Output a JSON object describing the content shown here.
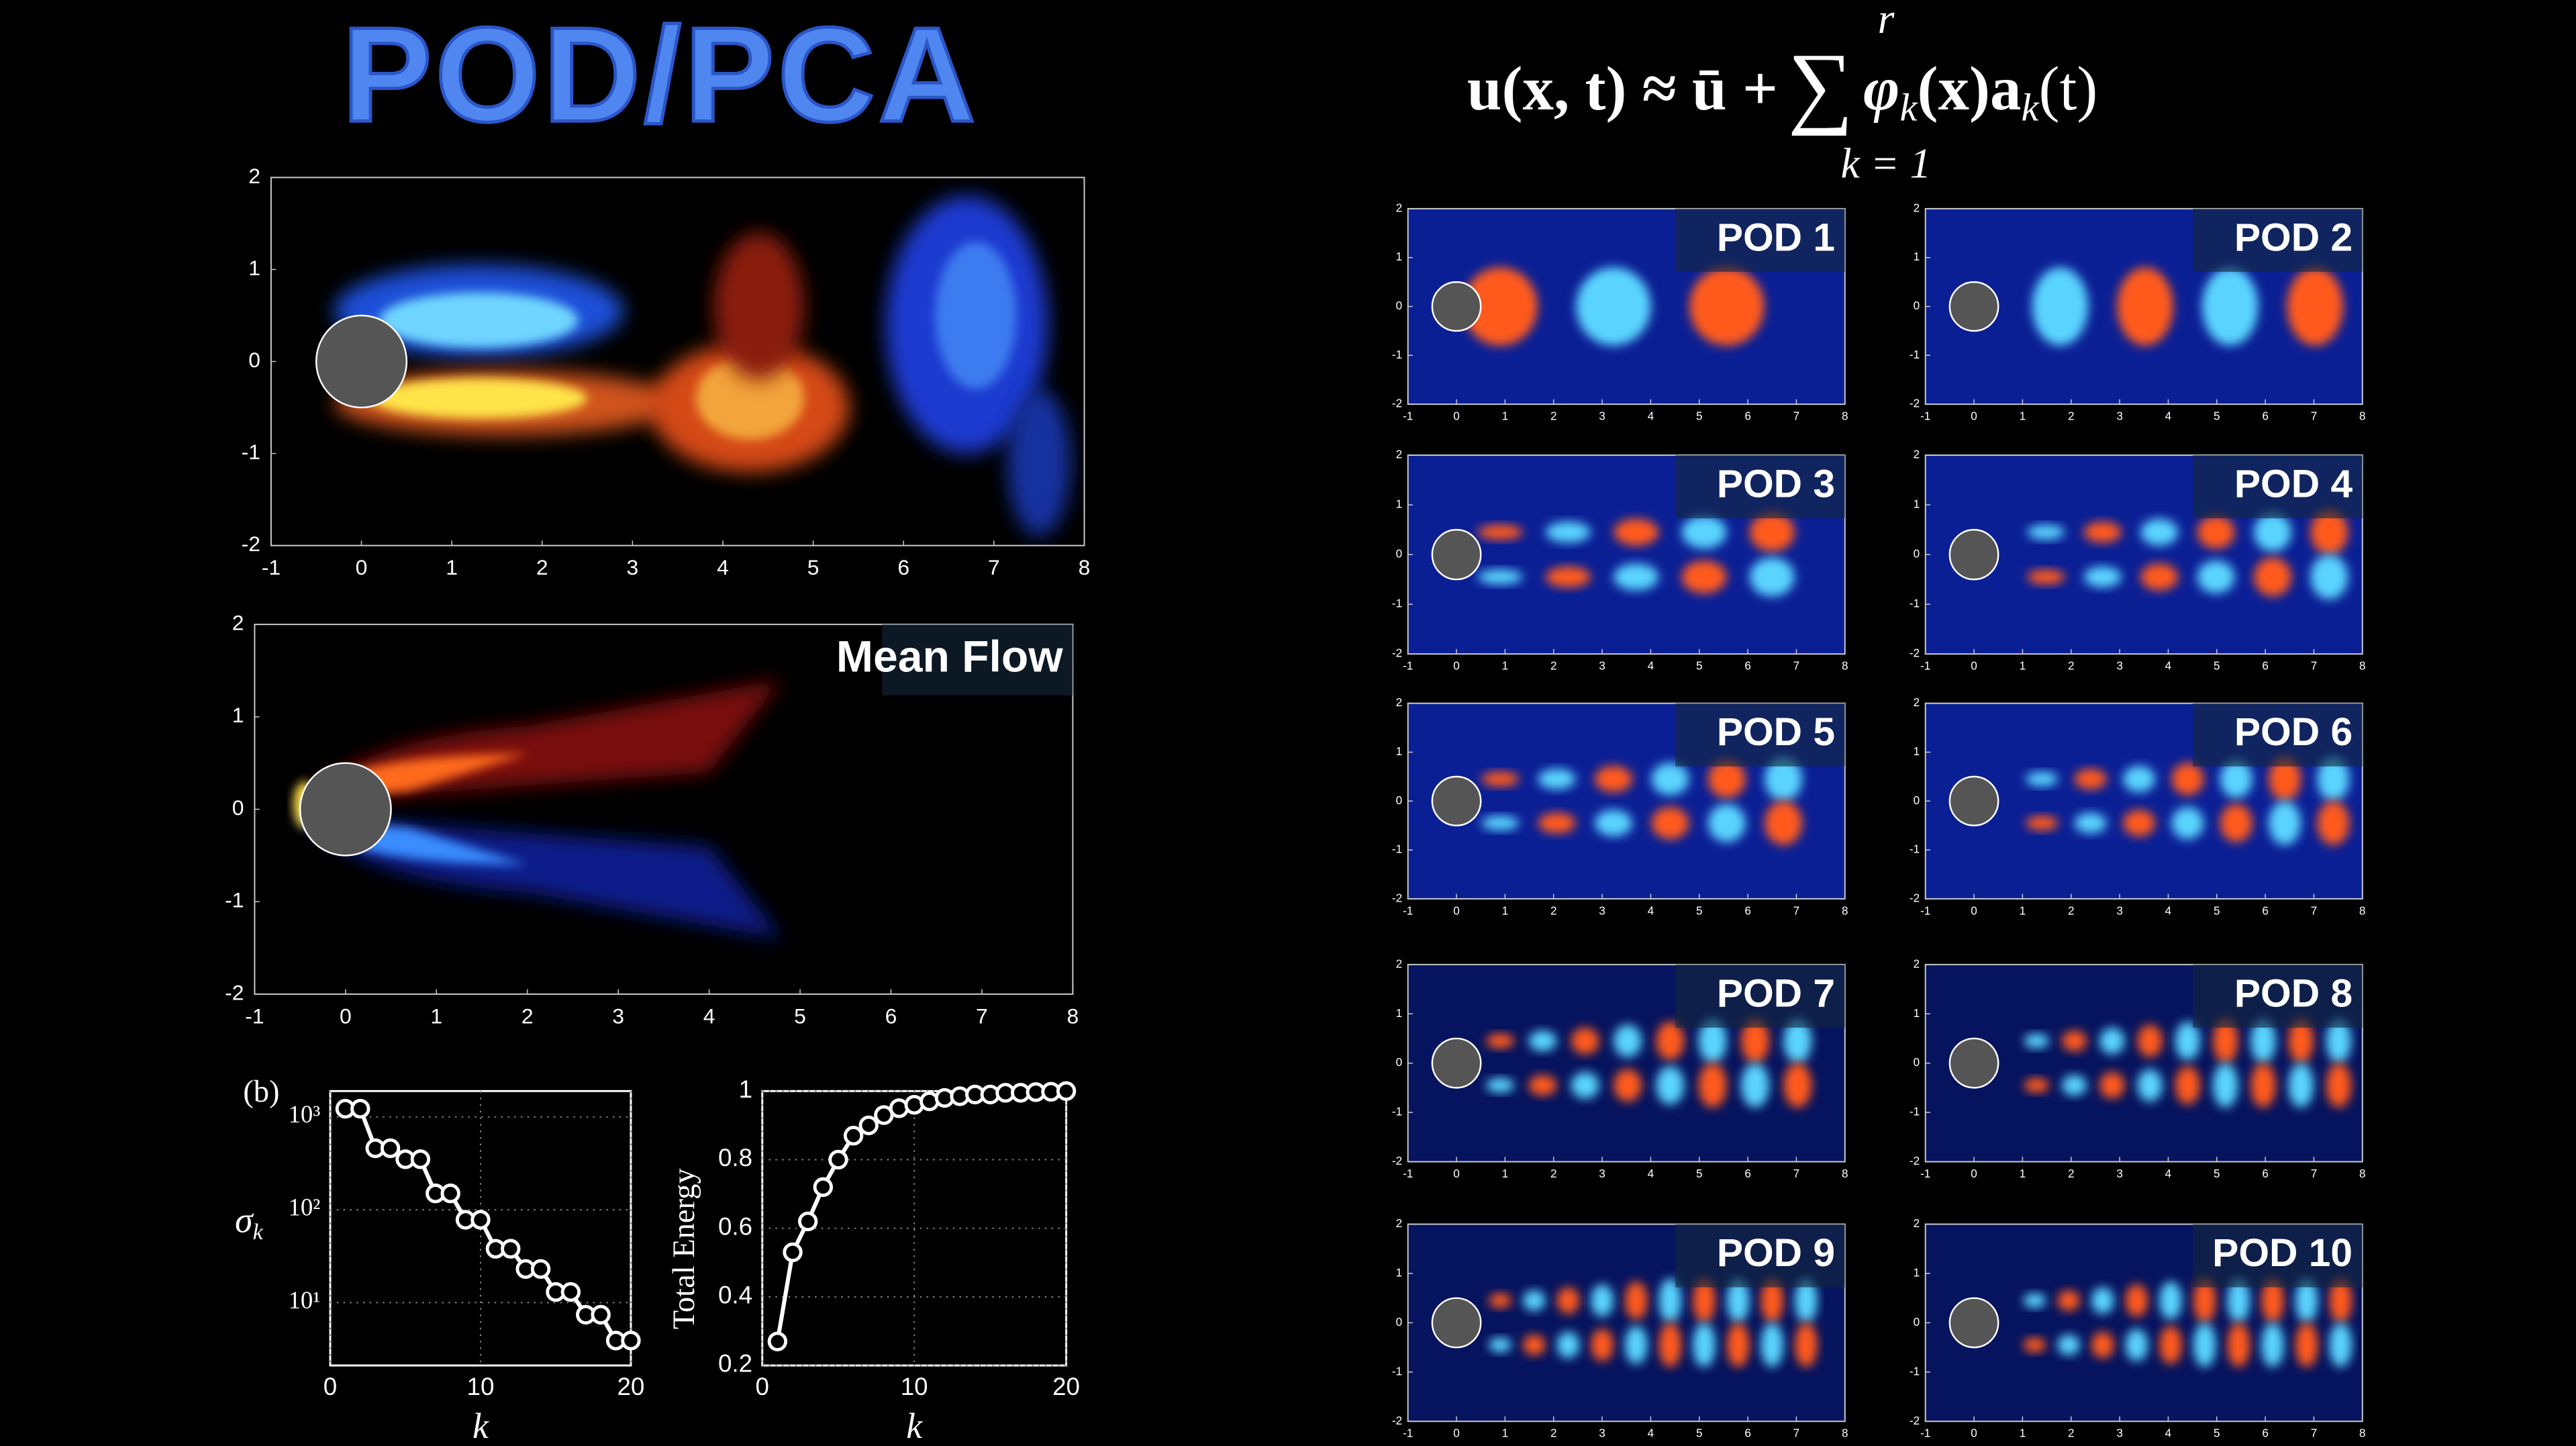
{
  "title": "POD/PCA",
  "equation": {
    "lhs": "u(x, t) ≈ ū +",
    "sum": "∑",
    "upper": "r",
    "lower": "k = 1",
    "phi": "φ",
    "sub1": "k",
    "mid": "(x)a",
    "sub2": "k",
    "end": "(t)"
  },
  "field_axes": {
    "xlim": [
      -1,
      8
    ],
    "ylim": [
      -2,
      2
    ],
    "xticks": [
      -1,
      0,
      1,
      2,
      3,
      4,
      5,
      6,
      7,
      8
    ],
    "yticks": [
      -2,
      -1,
      0,
      1,
      2
    ]
  },
  "panels": {
    "mean": {
      "label": "Mean Flow"
    },
    "modes": [
      {
        "label": "POD 1"
      },
      {
        "label": "POD 2"
      },
      {
        "label": "POD 3"
      },
      {
        "label": "POD 4"
      },
      {
        "label": "POD 5"
      },
      {
        "label": "POD 6"
      },
      {
        "label": "POD 7"
      },
      {
        "label": "POD 8"
      },
      {
        "label": "POD 9"
      },
      {
        "label": "POD 10"
      }
    ]
  },
  "chart_data": [
    {
      "type": "line",
      "annotation": "(b)",
      "xlabel": "k",
      "ylabel": "σ",
      "ylabel_sub": "k",
      "log_y": true,
      "grid": true,
      "color": "#ffffff",
      "x": [
        1,
        2,
        3,
        4,
        5,
        6,
        7,
        8,
        9,
        10,
        11,
        12,
        13,
        14,
        15,
        16,
        17,
        18,
        19,
        20
      ],
      "values": [
        1226,
        1226,
        460,
        460,
        350,
        350,
        150,
        150,
        78,
        78,
        38,
        38,
        23,
        23,
        13,
        13,
        7.4,
        7.4,
        3.9,
        3.9
      ],
      "xlim": [
        0,
        20
      ],
      "xticks": [
        0,
        10,
        20
      ],
      "ylim": [
        2.1,
        1900
      ],
      "yticks": [
        {
          "value": 10,
          "label": "10¹"
        },
        {
          "value": 100,
          "label": "10²"
        },
        {
          "value": 1000,
          "label": "10³"
        }
      ]
    },
    {
      "type": "line",
      "xlabel": "k",
      "ylabel": "Total Energy",
      "log_y": false,
      "grid": true,
      "color": "#ffffff",
      "x": [
        1,
        2,
        3,
        4,
        5,
        6,
        7,
        8,
        9,
        10,
        11,
        12,
        13,
        14,
        15,
        16,
        17,
        18,
        19,
        20
      ],
      "values": [
        0.27,
        0.53,
        0.62,
        0.72,
        0.8,
        0.87,
        0.9,
        0.93,
        0.95,
        0.96,
        0.97,
        0.98,
        0.985,
        0.99,
        0.99,
        0.995,
        0.995,
        0.997,
        0.998,
        1
      ],
      "xlim": [
        0,
        20
      ],
      "xticks": [
        0,
        10,
        20
      ],
      "ylim": [
        0.2,
        1
      ],
      "yticks": [
        0.2,
        0.4,
        0.6,
        0.8,
        1
      ]
    }
  ]
}
